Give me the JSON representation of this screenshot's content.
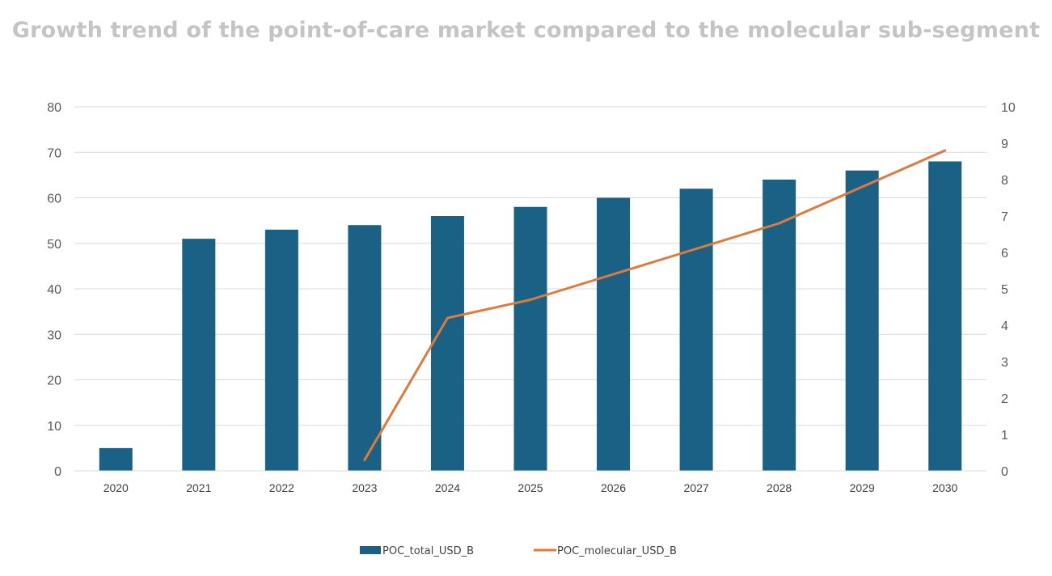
{
  "chart_data": {
    "type": "bar-line-combo",
    "title": "Growth trend of the point-of-care market compared to the molecular sub-segment",
    "categories": [
      "2020",
      "2021",
      "2022",
      "2023",
      "2024",
      "2025",
      "2026",
      "2027",
      "2028",
      "2029",
      "2030"
    ],
    "series": [
      {
        "name": "POC_total_USD_B",
        "type": "bar",
        "axis": "left",
        "color": "#1a6185",
        "values": [
          5,
          51,
          53,
          54,
          56,
          58,
          60,
          62,
          64,
          66,
          68
        ]
      },
      {
        "name": "POC_molecular_USD_B",
        "type": "line",
        "axis": "right",
        "color": "#e07a3c",
        "values": [
          null,
          null,
          null,
          0.3,
          4.2,
          4.7,
          5.4,
          6.1,
          6.8,
          7.8,
          8.8
        ]
      }
    ],
    "y_left": {
      "min": 0,
      "max": 80,
      "ticks": [
        0,
        10,
        20,
        30,
        40,
        50,
        60,
        70,
        80
      ]
    },
    "y_right": {
      "min": 0,
      "max": 10,
      "ticks": [
        0,
        1,
        2,
        3,
        4,
        5,
        6,
        7,
        8,
        9,
        10
      ]
    },
    "grid": true,
    "legend_position": "bottom"
  }
}
